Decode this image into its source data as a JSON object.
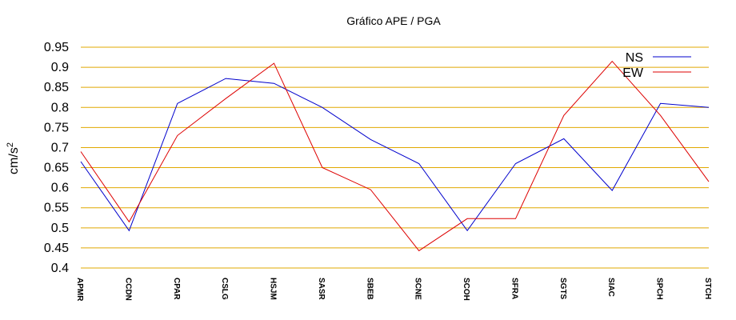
{
  "chart_data": {
    "type": "line",
    "title": "Gráfico  APE / PGA",
    "ylabel": "cm/s",
    "ylabel_sup": "2",
    "xlabel": "",
    "ylim": [
      0.4,
      0.95
    ],
    "yticks": [
      0.4,
      0.45,
      0.5,
      0.55,
      0.6,
      0.65,
      0.7,
      0.75,
      0.8,
      0.85,
      0.9,
      0.95
    ],
    "ytick_labels": [
      "0.4",
      "0.45",
      "0.5",
      "0.55",
      "0.6",
      "0.65",
      "0.7",
      "0.75",
      "0.8",
      "0.85",
      "0.9",
      "0.95"
    ],
    "grid": true,
    "grid_color": "#e0a800",
    "legend_position": "top-right",
    "categories": [
      "APMR",
      "CCDN",
      "CPAR",
      "CSLG",
      "HSJM",
      "SASR",
      "SBEB",
      "SCNE",
      "SCOH",
      "SFRA",
      "SGTS",
      "SIAC",
      "SPCH",
      "STCH"
    ],
    "series": [
      {
        "name": "NS",
        "color": "#0000cc",
        "values": [
          0.665,
          0.493,
          0.81,
          0.872,
          0.86,
          0.8,
          0.72,
          0.66,
          0.493,
          0.66,
          0.722,
          0.593,
          0.81,
          0.8
        ]
      },
      {
        "name": "EW",
        "color": "#dd0000",
        "values": [
          0.69,
          0.515,
          0.73,
          0.822,
          0.91,
          0.65,
          0.595,
          0.443,
          0.523,
          0.523,
          0.78,
          0.915,
          0.78,
          0.615
        ]
      }
    ]
  }
}
